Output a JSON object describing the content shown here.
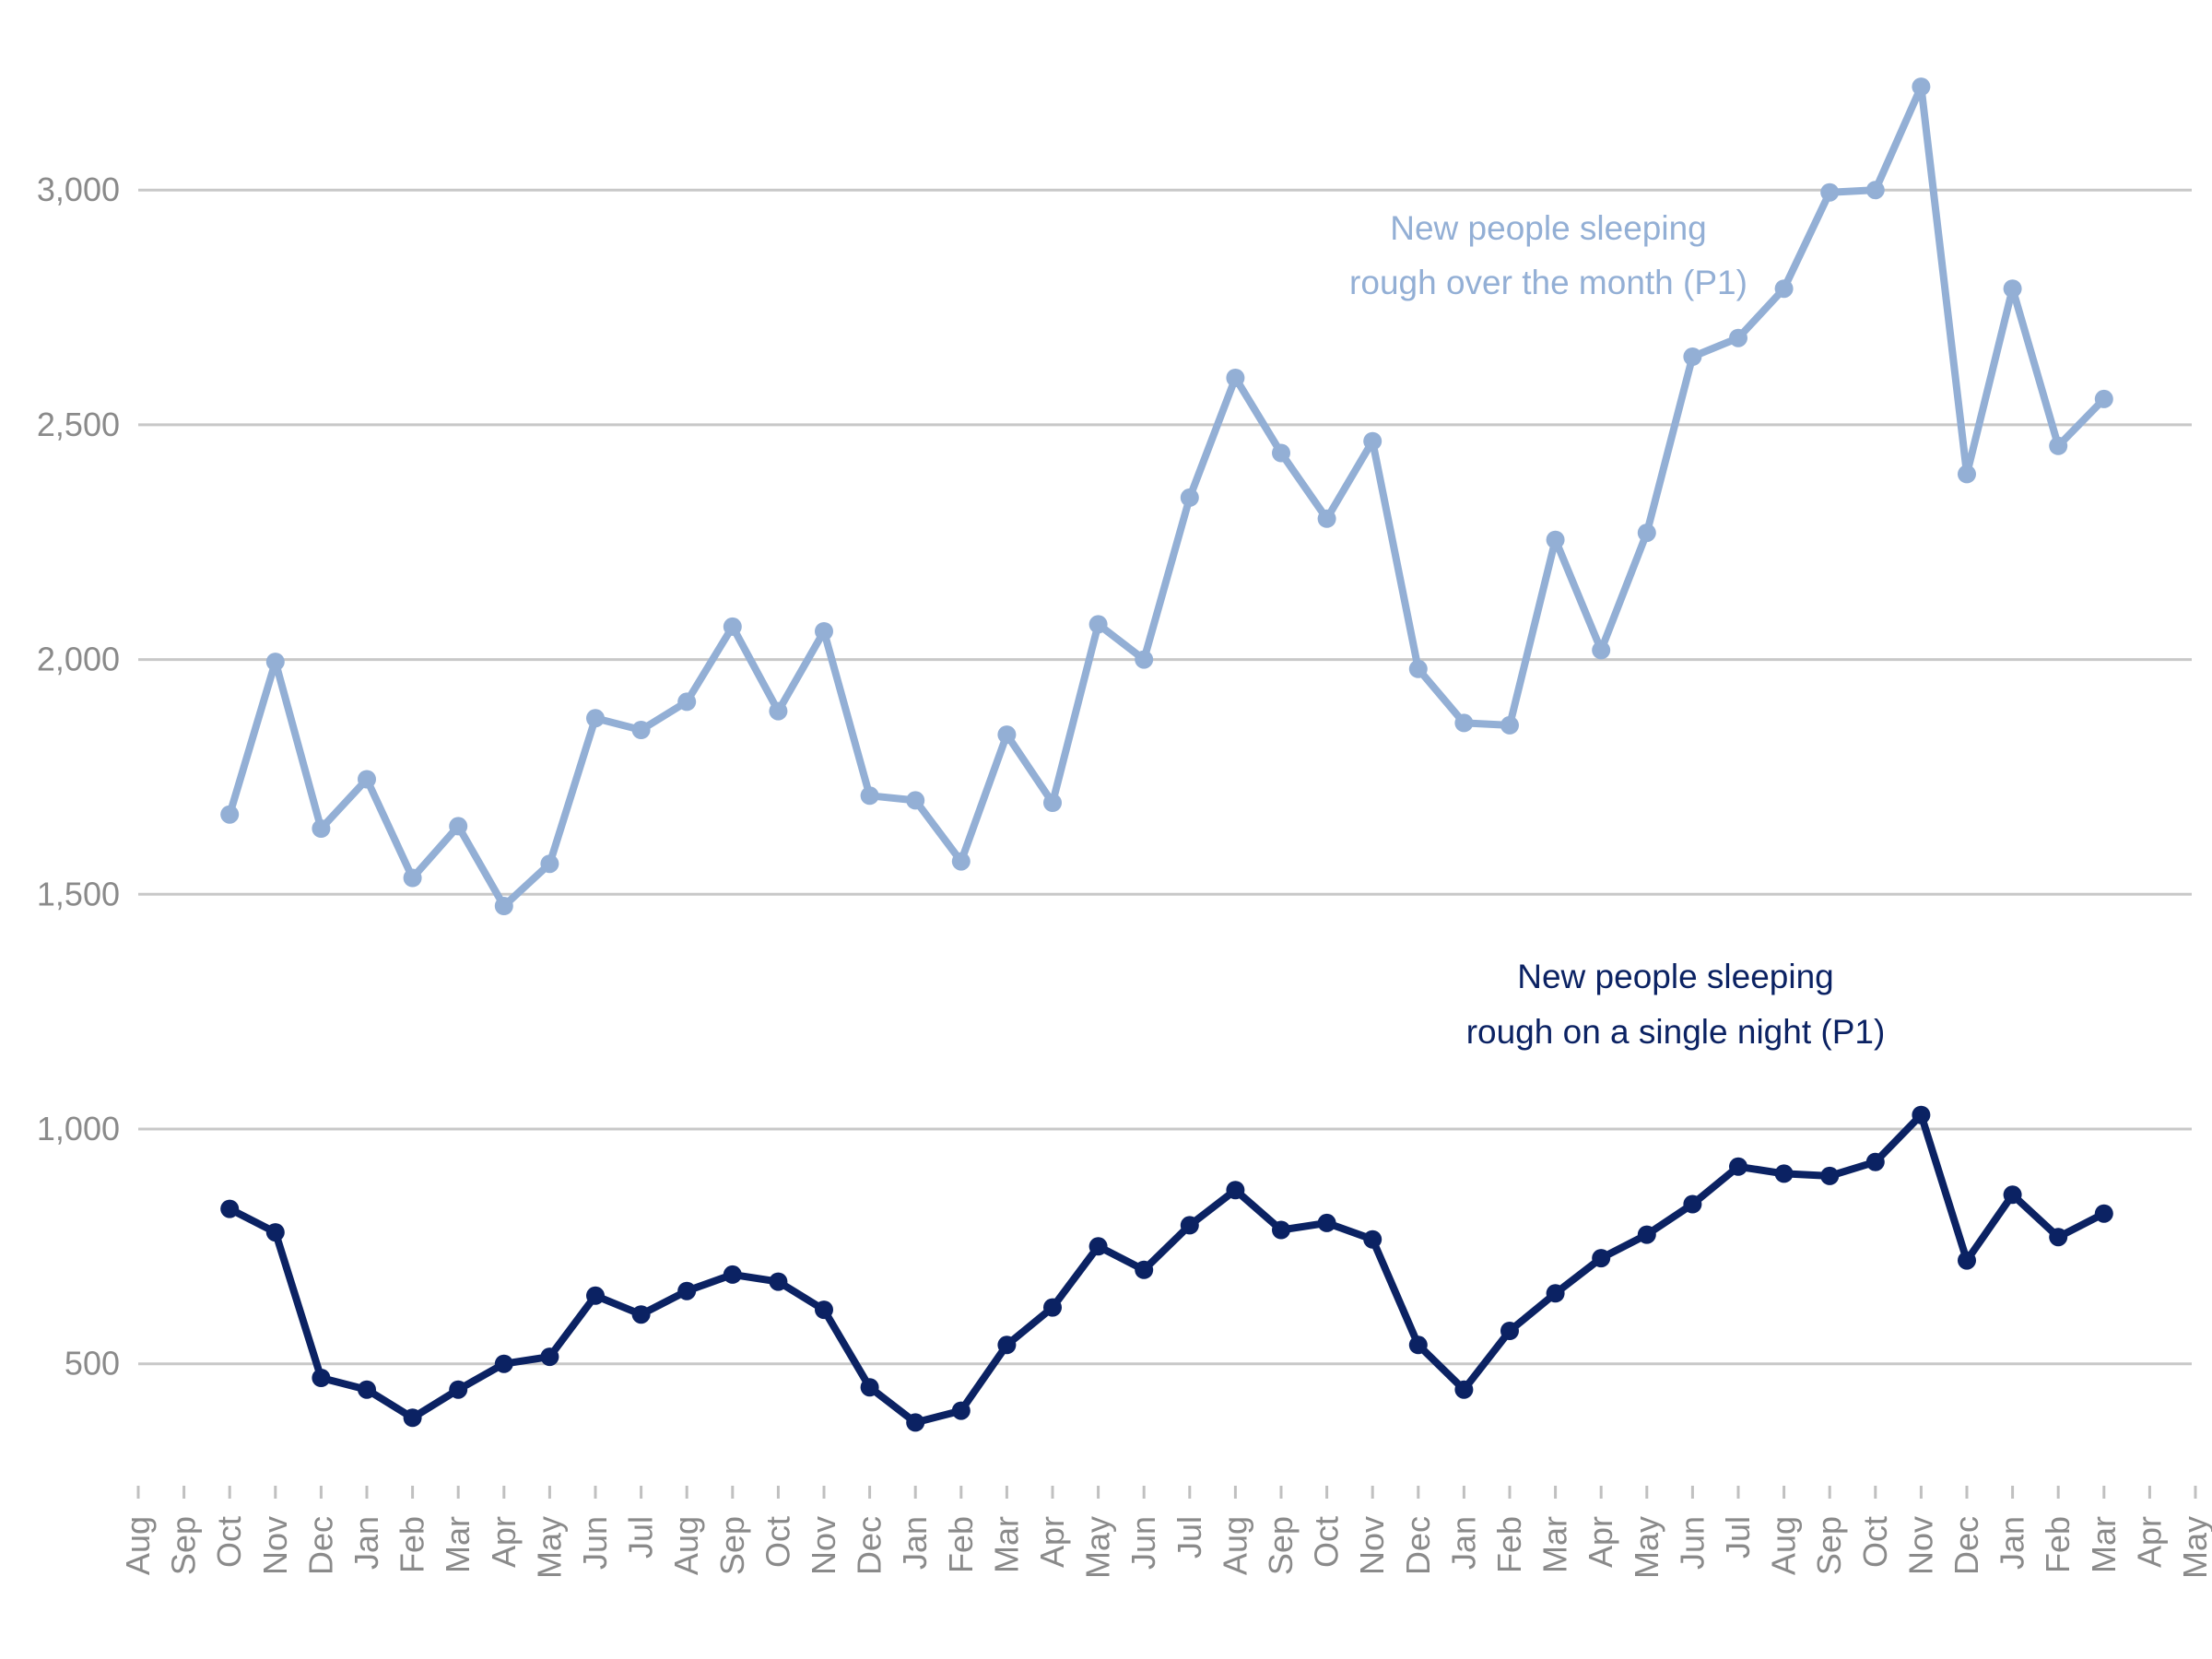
{
  "chart_data": {
    "type": "line",
    "title": "",
    "xlabel": "",
    "ylabel": "",
    "ylim": [
      230,
      3300
    ],
    "yticks": [
      500,
      1000,
      1500,
      2000,
      2500,
      3000
    ],
    "ytick_labels": [
      "500",
      "1,000",
      "1,500",
      "2,000",
      "2,500",
      "3,000"
    ],
    "grid": true,
    "x_labels": [
      "Aug",
      "Sep",
      "Oct",
      "Nov",
      "Dec",
      "Jan",
      "Feb",
      "Mar",
      "Apr",
      "May",
      "Jun",
      "Jul",
      "Aug",
      "Sep",
      "Oct",
      "Nov",
      "Dec",
      "Jan",
      "Feb",
      "Mar",
      "Apr",
      "May",
      "Jun",
      "Jul",
      "Aug",
      "Sep",
      "Oct",
      "Nov",
      "Dec",
      "Jan",
      "Feb",
      "Mar",
      "Apr",
      "May",
      "Jun",
      "Jul",
      "Aug",
      "Sep",
      "Oct",
      "Nov",
      "Dec",
      "Jan",
      "Feb",
      "Mar",
      "Apr",
      "May"
    ],
    "series": [
      {
        "name": "New people sleeping rough over the month (P1)",
        "label_lines": [
          "New people sleeping",
          "rough over the month (P1)"
        ],
        "color": "#93afd5",
        "start_index": 2,
        "values": [
          1670,
          1995,
          1640,
          1745,
          1535,
          1645,
          1475,
          1565,
          1875,
          1850,
          1910,
          2070,
          1890,
          2060,
          1710,
          1700,
          1570,
          1840,
          1695,
          2075,
          2000,
          2345,
          2600,
          2440,
          2300,
          2465,
          1980,
          1865,
          1860,
          2255,
          2020,
          2270,
          2645,
          2685,
          2790,
          2995,
          3000,
          3220,
          2395,
          2790,
          2455,
          2555
        ]
      },
      {
        "name": "New people sleeping rough on a single night (P1)",
        "label_lines": [
          "New people sleeping",
          "rough on a single night (P1)"
        ],
        "color": "#0b2263",
        "start_index": 2,
        "values": [
          830,
          780,
          470,
          445,
          385,
          445,
          500,
          515,
          645,
          605,
          655,
          690,
          675,
          615,
          450,
          375,
          400,
          540,
          620,
          750,
          700,
          795,
          870,
          785,
          800,
          765,
          540,
          445,
          570,
          650,
          725,
          775,
          840,
          920,
          905,
          900,
          930,
          1030,
          720,
          860,
          770,
          820
        ]
      }
    ]
  }
}
